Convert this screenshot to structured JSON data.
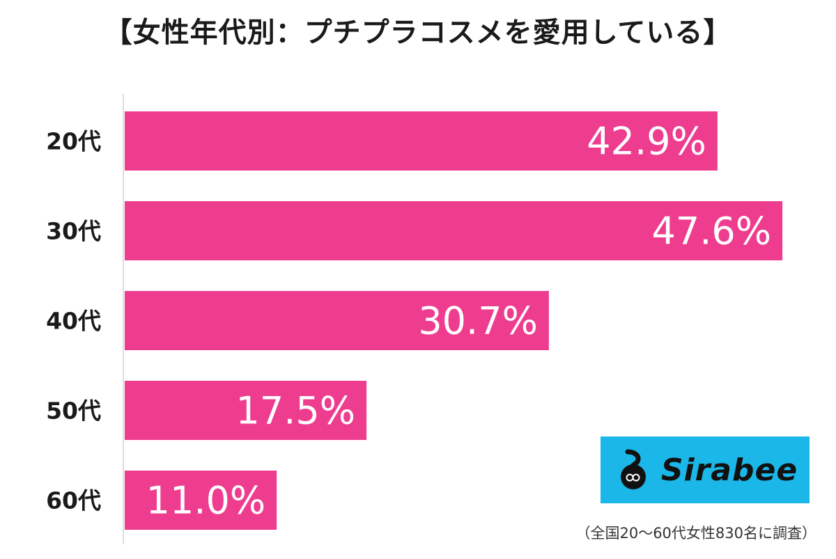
{
  "chart_data": {
    "type": "bar",
    "orientation": "horizontal",
    "title": "【女性年代別：プチプラコスメを愛用している】",
    "categories": [
      "20代",
      "30代",
      "40代",
      "50代",
      "60代"
    ],
    "values": [
      42.9,
      47.6,
      30.7,
      17.5,
      11.0
    ],
    "value_labels": [
      "42.9%",
      "47.6%",
      "30.7%",
      "17.5%",
      "11.0%"
    ],
    "xlim": [
      0,
      48
    ],
    "grid": false,
    "bar_color": "#ee3d8f",
    "xlabel": "",
    "ylabel": ""
  },
  "logo": {
    "text": "Sirabee",
    "background_color": "#1ab7e8"
  },
  "footnote": "（全国20～60代女性830名に調査）"
}
